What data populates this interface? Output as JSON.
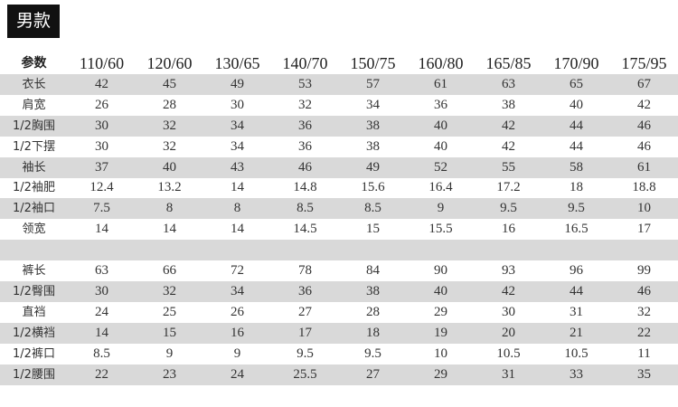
{
  "header": {
    "title": "男款"
  },
  "table": {
    "columns": [
      "参数",
      "110/60",
      "120/60",
      "130/65",
      "140/70",
      "150/75",
      "160/80",
      "165/85",
      "170/90",
      "175/95"
    ],
    "top_rows": [
      [
        "衣长",
        "42",
        "45",
        "49",
        "53",
        "57",
        "61",
        "63",
        "65",
        "67"
      ],
      [
        "肩宽",
        "26",
        "28",
        "30",
        "32",
        "34",
        "36",
        "38",
        "40",
        "42"
      ],
      [
        "1/2胸围",
        "30",
        "32",
        "34",
        "36",
        "38",
        "40",
        "42",
        "44",
        "46"
      ],
      [
        "1/2下摆",
        "30",
        "32",
        "34",
        "36",
        "38",
        "40",
        "42",
        "44",
        "46"
      ],
      [
        "袖长",
        "37",
        "40",
        "43",
        "46",
        "49",
        "52",
        "55",
        "58",
        "61"
      ],
      [
        "1/2袖肥",
        "12.4",
        "13.2",
        "14",
        "14.8",
        "15.6",
        "16.4",
        "17.2",
        "18",
        "18.8"
      ],
      [
        "1/2袖口",
        "7.5",
        "8",
        "8",
        "8.5",
        "8.5",
        "9",
        "9.5",
        "9.5",
        "10"
      ],
      [
        "领宽",
        "14",
        "14",
        "14",
        "14.5",
        "15",
        "15.5",
        "16",
        "16.5",
        "17"
      ]
    ],
    "bottom_rows": [
      [
        "裤长",
        "63",
        "66",
        "72",
        "78",
        "84",
        "90",
        "93",
        "96",
        "99"
      ],
      [
        "1/2臀围",
        "30",
        "32",
        "34",
        "36",
        "38",
        "40",
        "42",
        "44",
        "46"
      ],
      [
        "直裆",
        "24",
        "25",
        "26",
        "27",
        "28",
        "29",
        "30",
        "31",
        "32"
      ],
      [
        "1/2横裆",
        "14",
        "15",
        "16",
        "17",
        "18",
        "19",
        "20",
        "21",
        "22"
      ],
      [
        "1/2裤口",
        "8.5",
        "9",
        "9",
        "9.5",
        "9.5",
        "10",
        "10.5",
        "10.5",
        "11"
      ],
      [
        "1/2腰围",
        "22",
        "23",
        "24",
        "25.5",
        "27",
        "29",
        "31",
        "33",
        "35"
      ]
    ]
  }
}
